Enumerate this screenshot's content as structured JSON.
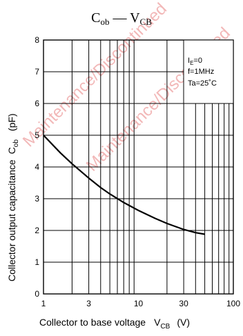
{
  "watermark_text": "Maintenance/Discontinued",
  "watermark_color": "#f2b8b8",
  "chart_data": {
    "type": "line",
    "title": {
      "main": "C",
      "main_sub": "ob",
      "separator": " — ",
      "second": "V",
      "second_sub": "CB"
    },
    "xlabel": {
      "text": "Collector to base voltage",
      "symbol": "V",
      "symbol_sub": "CB",
      "unit": "(V)"
    },
    "ylabel": {
      "text": "Collector output capacitance",
      "symbol": "C",
      "symbol_sub": "ob",
      "unit": "(pF)"
    },
    "x_scale": "log",
    "xlim": [
      1,
      100
    ],
    "ylim": [
      0,
      8
    ],
    "x_ticks": [
      "1",
      "3",
      "10",
      "30",
      "100"
    ],
    "y_ticks": [
      "0",
      "1",
      "2",
      "3",
      "4",
      "5",
      "6",
      "7",
      "8"
    ],
    "grid": true,
    "conditions": {
      "ie_symbol": "I",
      "ie_sub": "E",
      "ie_value": "=0",
      "freq": "f=1MHz",
      "temp": "Ta=25˚C"
    },
    "series": [
      {
        "x": [
          1,
          1.5,
          2,
          3,
          4,
          5,
          7,
          10,
          15,
          20,
          30,
          40,
          50
        ],
        "y": [
          5.0,
          4.45,
          4.1,
          3.65,
          3.35,
          3.15,
          2.88,
          2.63,
          2.38,
          2.22,
          2.03,
          1.93,
          1.88
        ]
      }
    ]
  }
}
